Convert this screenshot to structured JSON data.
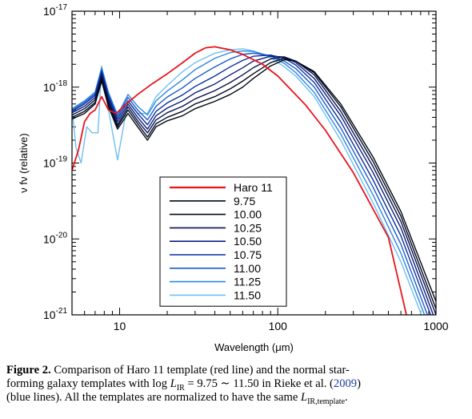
{
  "chart_data": {
    "type": "line",
    "xlabel": "Wavelength (μm)",
    "ylabel": "ν fν (relative)",
    "xscale": "log",
    "yscale": "log",
    "xlim": [
      5,
      1000
    ],
    "ylim": [
      1e-21,
      1e-17
    ],
    "x_tick_labels": [
      "10",
      "100",
      "1000"
    ],
    "y_tick_labels": [
      {
        "base": "10",
        "exp": "-21"
      },
      {
        "base": "10",
        "exp": "-20"
      },
      {
        "base": "10",
        "exp": "-19"
      },
      {
        "base": "10",
        "exp": "-18"
      },
      {
        "base": "10",
        "exp": "-17"
      }
    ],
    "legend_position": "center-left",
    "series": [
      {
        "name": "Haro 11",
        "color": "#e8141c",
        "points": [
          [
            5,
            8e-20
          ],
          [
            5.5,
            1.5e-19
          ],
          [
            6,
            3.5e-19
          ],
          [
            6.5,
            4.5e-19
          ],
          [
            7,
            5e-19
          ],
          [
            7.7,
            7.5e-19
          ],
          [
            8.5,
            5e-19
          ],
          [
            9.5,
            4.5e-19
          ],
          [
            11,
            6e-19
          ],
          [
            13,
            8e-19
          ],
          [
            16,
            1.1e-18
          ],
          [
            20,
            1.5e-18
          ],
          [
            25,
            2.1e-18
          ],
          [
            30,
            2.8e-18
          ],
          [
            35,
            3.3e-18
          ],
          [
            40,
            3.4e-18
          ],
          [
            50,
            3.1e-18
          ],
          [
            60,
            2.7e-18
          ],
          [
            80,
            2e-18
          ],
          [
            100,
            1.4e-18
          ],
          [
            150,
            5.8e-19
          ],
          [
            200,
            2.7e-19
          ],
          [
            300,
            7.5e-20
          ],
          [
            500,
            1.05e-20
          ],
          [
            650,
            1e-21
          ]
        ]
      },
      {
        "name": "9.75",
        "color": "#000814",
        "points": [
          [
            5,
            3.8e-19
          ],
          [
            6,
            4.5e-19
          ],
          [
            7,
            6e-19
          ],
          [
            7.7,
            1.2e-18
          ],
          [
            8.5,
            5.5e-19
          ],
          [
            9.7,
            2.8e-19
          ],
          [
            11.3,
            4.5e-19
          ],
          [
            13,
            3e-19
          ],
          [
            15,
            2e-19
          ],
          [
            17,
            3e-19
          ],
          [
            20,
            3.6e-19
          ],
          [
            25,
            4.2e-19
          ],
          [
            30,
            5.2e-19
          ],
          [
            40,
            6.5e-19
          ],
          [
            50,
            8e-19
          ],
          [
            60,
            1e-18
          ],
          [
            70,
            1.3e-18
          ],
          [
            90,
            1.9e-18
          ],
          [
            110,
            2.3e-18
          ],
          [
            130,
            2.2e-18
          ],
          [
            170,
            1.6e-18
          ],
          [
            250,
            6e-19
          ],
          [
            400,
            1.2e-19
          ],
          [
            600,
            2.3e-20
          ],
          [
            1000,
            1.5e-21
          ]
        ]
      },
      {
        "name": "10.00",
        "color": "#050b1e",
        "points": [
          [
            5,
            4e-19
          ],
          [
            6,
            4.8e-19
          ],
          [
            7,
            6.3e-19
          ],
          [
            7.7,
            1.3e-18
          ],
          [
            8.5,
            6e-19
          ],
          [
            9.7,
            3e-19
          ],
          [
            11.3,
            5e-19
          ],
          [
            13,
            3.3e-19
          ],
          [
            15,
            2.2e-19
          ],
          [
            17,
            3.3e-19
          ],
          [
            20,
            4e-19
          ],
          [
            25,
            4.8e-19
          ],
          [
            30,
            6e-19
          ],
          [
            40,
            7.5e-19
          ],
          [
            50,
            9.5e-19
          ],
          [
            60,
            1.2e-18
          ],
          [
            70,
            1.5e-18
          ],
          [
            90,
            2.1e-18
          ],
          [
            110,
            2.4e-18
          ],
          [
            130,
            2.2e-18
          ],
          [
            170,
            1.55e-18
          ],
          [
            250,
            5.5e-19
          ],
          [
            400,
            1.05e-19
          ],
          [
            600,
            2e-20
          ],
          [
            1000,
            1.2e-21
          ]
        ]
      },
      {
        "name": "10.25",
        "color": "#0a1250",
        "points": [
          [
            5,
            4.3e-19
          ],
          [
            6,
            5.2e-19
          ],
          [
            7,
            6.8e-19
          ],
          [
            7.7,
            1.4e-18
          ],
          [
            8.5,
            6.5e-19
          ],
          [
            9.7,
            3.2e-19
          ],
          [
            11.3,
            5.5e-19
          ],
          [
            13,
            3.6e-19
          ],
          [
            15,
            2.5e-19
          ],
          [
            17,
            3.7e-19
          ],
          [
            20,
            4.6e-19
          ],
          [
            25,
            5.6e-19
          ],
          [
            30,
            7e-19
          ],
          [
            40,
            9e-19
          ],
          [
            50,
            1.15e-18
          ],
          [
            60,
            1.45e-18
          ],
          [
            70,
            1.8e-18
          ],
          [
            90,
            2.35e-18
          ],
          [
            110,
            2.5e-18
          ],
          [
            130,
            2.2e-18
          ],
          [
            170,
            1.45e-18
          ],
          [
            250,
            4.8e-19
          ],
          [
            400,
            9e-20
          ],
          [
            600,
            1.7e-20
          ],
          [
            1000,
            1e-21
          ]
        ]
      },
      {
        "name": "10.50",
        "color": "#0d1f7a",
        "points": [
          [
            5,
            4.6e-19
          ],
          [
            6,
            5.6e-19
          ],
          [
            7,
            7.3e-19
          ],
          [
            7.7,
            1.5e-18
          ],
          [
            8.5,
            7e-19
          ],
          [
            9.7,
            3.5e-19
          ],
          [
            11.3,
            6e-19
          ],
          [
            13,
            4e-19
          ],
          [
            15,
            2.8e-19
          ],
          [
            17,
            4.2e-19
          ],
          [
            20,
            5.3e-19
          ],
          [
            25,
            6.6e-19
          ],
          [
            30,
            8.4e-19
          ],
          [
            40,
            1.1e-18
          ],
          [
            50,
            1.45e-18
          ],
          [
            60,
            1.8e-18
          ],
          [
            70,
            2.2e-18
          ],
          [
            90,
            2.55e-18
          ],
          [
            110,
            2.5e-18
          ],
          [
            130,
            2.1e-18
          ],
          [
            170,
            1.3e-18
          ],
          [
            250,
            4.2e-19
          ],
          [
            400,
            7.5e-20
          ],
          [
            600,
            1.4e-20
          ],
          [
            1000,
            8e-22
          ]
        ]
      },
      {
        "name": "10.75",
        "color": "#0a2fa0",
        "points": [
          [
            5,
            4.8e-19
          ],
          [
            6,
            6e-19
          ],
          [
            7,
            7.8e-19
          ],
          [
            7.7,
            1.6e-18
          ],
          [
            8.5,
            7.5e-19
          ],
          [
            9.7,
            3.8e-19
          ],
          [
            11.3,
            6.6e-19
          ],
          [
            13,
            4.5e-19
          ],
          [
            15,
            3.2e-19
          ],
          [
            17,
            4.8e-19
          ],
          [
            20,
            6.2e-19
          ],
          [
            25,
            7.9e-19
          ],
          [
            30,
            1.02e-18
          ],
          [
            40,
            1.4e-18
          ],
          [
            50,
            1.85e-18
          ],
          [
            60,
            2.25e-18
          ],
          [
            70,
            2.55e-18
          ],
          [
            90,
            2.65e-18
          ],
          [
            110,
            2.4e-18
          ],
          [
            130,
            1.95e-18
          ],
          [
            170,
            1.15e-18
          ],
          [
            250,
            3.5e-19
          ],
          [
            400,
            6e-20
          ],
          [
            600,
            1.1e-20
          ],
          [
            1000,
            6.5e-22
          ]
        ]
      },
      {
        "name": "11.00",
        "color": "#1c5bc8",
        "points": [
          [
            5,
            5e-19
          ],
          [
            6,
            6.3e-19
          ],
          [
            7,
            8.2e-19
          ],
          [
            7.7,
            1.7e-18
          ],
          [
            8.5,
            8e-19
          ],
          [
            9.7,
            4.1e-19
          ],
          [
            11.3,
            7.3e-19
          ],
          [
            13,
            5e-19
          ],
          [
            15,
            3.7e-19
          ],
          [
            17,
            5.6e-19
          ],
          [
            20,
            7.4e-19
          ],
          [
            25,
            9.8e-19
          ],
          [
            30,
            1.3e-18
          ],
          [
            40,
            1.85e-18
          ],
          [
            50,
            2.35e-18
          ],
          [
            60,
            2.7e-18
          ],
          [
            70,
            2.8e-18
          ],
          [
            90,
            2.6e-18
          ],
          [
            110,
            2.2e-18
          ],
          [
            130,
            1.75e-18
          ],
          [
            170,
            1e-18
          ],
          [
            250,
            2.9e-19
          ],
          [
            400,
            4.8e-20
          ],
          [
            600,
            8.5e-21
          ],
          [
            1000,
            5e-22
          ]
        ]
      },
      {
        "name": "11.25",
        "color": "#2f86e0",
        "points": [
          [
            5,
            5.2e-19
          ],
          [
            6,
            6.6e-19
          ],
          [
            7,
            8.6e-19
          ],
          [
            7.7,
            1.8e-18
          ],
          [
            8.5,
            8.5e-19
          ],
          [
            9.7,
            4.3e-19
          ],
          [
            11.3,
            8e-19
          ],
          [
            13,
            5.6e-19
          ],
          [
            15,
            4.3e-19
          ],
          [
            17,
            6.6e-19
          ],
          [
            20,
            8.9e-19
          ],
          [
            25,
            1.25e-18
          ],
          [
            30,
            1.7e-18
          ],
          [
            40,
            2.4e-18
          ],
          [
            50,
            2.85e-18
          ],
          [
            60,
            3e-18
          ],
          [
            70,
            2.95e-18
          ],
          [
            90,
            2.55e-18
          ],
          [
            110,
            2.05e-18
          ],
          [
            130,
            1.55e-18
          ],
          [
            170,
            8.5e-19
          ],
          [
            250,
            2.4e-19
          ],
          [
            400,
            3.8e-20
          ],
          [
            600,
            6.5e-21
          ],
          [
            1000,
            4e-22
          ]
        ]
      },
      {
        "name": "11.50",
        "color": "#6cc0f2",
        "points": [
          [
            5,
            5.4e-19
          ],
          [
            5.3,
            1.6e-19
          ],
          [
            5.7,
            1e-19
          ],
          [
            6.2,
            3e-19
          ],
          [
            6.7,
            2.5e-19
          ],
          [
            7.3,
            2.5e-19
          ],
          [
            7.7,
            1.9e-18
          ],
          [
            8.5,
            5e-19
          ],
          [
            9.7,
            1.1e-19
          ],
          [
            11.3,
            6.5e-19
          ],
          [
            13,
            4.5e-19
          ],
          [
            15,
            4.5e-19
          ],
          [
            17,
            7.5e-19
          ],
          [
            20,
            1.05e-18
          ],
          [
            25,
            1.6e-18
          ],
          [
            30,
            2.1e-18
          ],
          [
            40,
            2.8e-18
          ],
          [
            50,
            3.1e-18
          ],
          [
            60,
            3.2e-18
          ],
          [
            70,
            3e-18
          ],
          [
            90,
            2.45e-18
          ],
          [
            110,
            1.85e-18
          ],
          [
            130,
            1.4e-18
          ],
          [
            170,
            7.5e-19
          ],
          [
            250,
            2e-19
          ],
          [
            400,
            3e-20
          ],
          [
            600,
            5e-21
          ],
          [
            1000,
            3.2e-22
          ]
        ]
      }
    ]
  },
  "caption": {
    "figure_label": "Figure 2.",
    "line1": "Comparison of Haro 11 template (red line) and the normal star-",
    "line2_a": "forming galaxy templates with log ",
    "L": "L",
    "ir_sub": "IR",
    "line2_b": " = 9.75 ∼ 11.50 in Rieke et al. (",
    "ref_year": "2009",
    "line2_c": ")",
    "line3_a": "(blue lines). All the templates are normalized to have the same ",
    "template_sub": "IR,template",
    "line3_b": "."
  }
}
